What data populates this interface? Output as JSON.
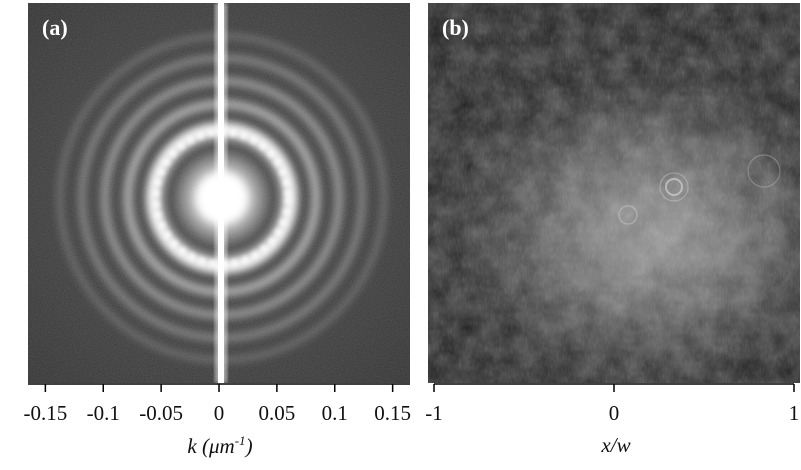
{
  "panels": {
    "a": {
      "label": "(a)"
    },
    "b": {
      "label": "(b)"
    }
  },
  "chart_data": [
    {
      "type": "image",
      "panel": "(a)",
      "description_visible": "far-field ring pattern",
      "x_ticks": [
        "-0.15",
        "-0.1",
        "-0.05",
        "0",
        "0.05",
        "0.1",
        "0.15"
      ],
      "x_tick_values": [
        -0.15,
        -0.1,
        -0.05,
        0,
        0.05,
        0.1,
        0.15
      ],
      "xlim": [
        -0.165,
        0.165
      ],
      "xlabel_var": "k",
      "xlabel_unit_base": "μm",
      "xlabel_unit_exp": "-1"
    },
    {
      "type": "image",
      "panel": "(b)",
      "x_ticks": [
        "-1",
        "0",
        "1"
      ],
      "x_tick_values": [
        -1,
        0,
        1
      ],
      "xlim": [
        -1,
        1
      ],
      "xlabel": "x/w"
    }
  ]
}
